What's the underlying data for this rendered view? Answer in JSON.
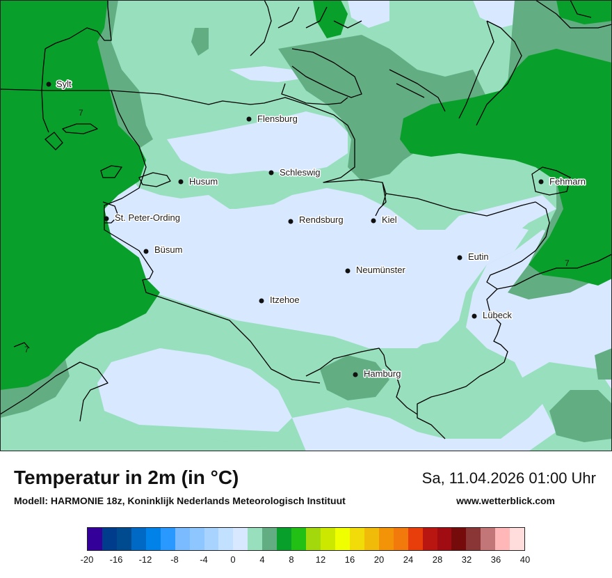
{
  "map": {
    "cities": [
      {
        "name": "Sylt"
      },
      {
        "name": "Flensburg"
      },
      {
        "name": "Husum"
      },
      {
        "name": "Schleswig"
      },
      {
        "name": "Fehmarn"
      },
      {
        "name": "St. Peter-Ording"
      },
      {
        "name": "Rendsburg"
      },
      {
        "name": "Kiel"
      },
      {
        "name": "Büsum"
      },
      {
        "name": "Eutin"
      },
      {
        "name": "Neumünster"
      },
      {
        "name": "Itzehoe"
      },
      {
        "name": "Lübeck"
      },
      {
        "name": "Hamburg"
      }
    ],
    "contour_labels": [
      "7",
      "7",
      "7"
    ],
    "colors": {
      "band_0_2": "#d8e8ff",
      "band_2_4": "#97dfbd",
      "band_4_6": "#62ad82",
      "band_6_8": "#08a02a",
      "border": "#000000"
    }
  },
  "footer": {
    "title": "Temperatur in 2m (in °C)",
    "model": "Modell: HARMONIE 18z, Koninklijk Nederlands Meteorologisch Instituut",
    "datetime": "Sa, 11.04.2026 01:00 Uhr",
    "website": "www.wetterblick.com"
  },
  "legend": {
    "colors": [
      "#330099",
      "#003c8c",
      "#004a8f",
      "#0069c6",
      "#0082e8",
      "#2a99ff",
      "#7abbff",
      "#8ec6ff",
      "#a9d3ff",
      "#c2e0ff",
      "#d8e8ff",
      "#97dfbd",
      "#62ad82",
      "#08a02a",
      "#22bf14",
      "#a3d80d",
      "#cce800",
      "#f0ff00",
      "#f1dc09",
      "#f1bc09",
      "#f29308",
      "#f27a0d",
      "#e73e0b",
      "#b91511",
      "#a10b12",
      "#760b0b",
      "#8a3536",
      "#c27677",
      "#ffb7b7",
      "#ffdddd"
    ],
    "ticks": [
      "-20",
      "-16",
      "-12",
      "-8",
      "-4",
      "0",
      "4",
      "8",
      "12",
      "16",
      "20",
      "24",
      "28",
      "32",
      "36",
      "40"
    ]
  }
}
